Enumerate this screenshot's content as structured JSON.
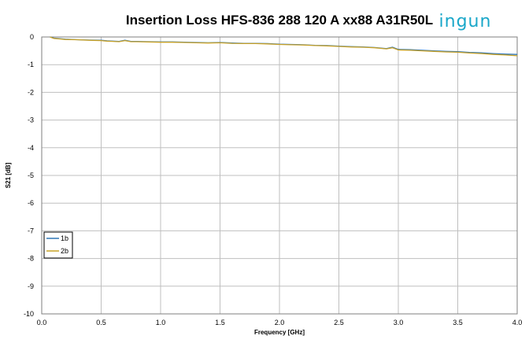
{
  "logo": {
    "text": "ingun",
    "color": "#1aa7c9"
  },
  "chart_data": {
    "type": "line",
    "title": "Insertion Loss HFS-836 288 120 A xx88 A31R50L",
    "xlabel": "Frequency [GHz]",
    "ylabel": "S21 [dB]",
    "xlim": [
      0.0,
      4.0
    ],
    "ylim": [
      -10,
      0
    ],
    "xticks": [
      "0.0",
      "0.5",
      "1.0",
      "1.5",
      "2.0",
      "2.5",
      "3.0",
      "3.5",
      "4.0"
    ],
    "yticks": [
      "0",
      "-1",
      "-2",
      "-3",
      "-4",
      "-5",
      "-6",
      "-7",
      "-8",
      "-9",
      "-10"
    ],
    "grid": true,
    "legend_position": "bottom-left",
    "series": [
      {
        "name": "1b",
        "color": "#2e75b6",
        "x": [
          0.07,
          0.1,
          0.15,
          0.2,
          0.3,
          0.4,
          0.5,
          0.55,
          0.6,
          0.65,
          0.7,
          0.75,
          0.8,
          0.9,
          1.0,
          1.1,
          1.2,
          1.3,
          1.4,
          1.5,
          1.6,
          1.7,
          1.8,
          1.9,
          2.0,
          2.1,
          2.2,
          2.3,
          2.4,
          2.5,
          2.6,
          2.7,
          2.8,
          2.9,
          2.95,
          3.0,
          3.1,
          3.2,
          3.3,
          3.4,
          3.5,
          3.6,
          3.7,
          3.8,
          3.9,
          4.0
        ],
        "y": [
          0.0,
          -0.04,
          -0.06,
          -0.08,
          -0.1,
          -0.11,
          -0.12,
          -0.14,
          -0.15,
          -0.16,
          -0.12,
          -0.16,
          -0.16,
          -0.17,
          -0.18,
          -0.18,
          -0.19,
          -0.2,
          -0.21,
          -0.2,
          -0.22,
          -0.23,
          -0.23,
          -0.24,
          -0.26,
          -0.27,
          -0.28,
          -0.3,
          -0.31,
          -0.33,
          -0.35,
          -0.36,
          -0.38,
          -0.42,
          -0.37,
          -0.45,
          -0.46,
          -0.48,
          -0.5,
          -0.52,
          -0.53,
          -0.56,
          -0.57,
          -0.6,
          -0.62,
          -0.63
        ]
      },
      {
        "name": "2b",
        "color": "#c9a227",
        "x": [
          0.07,
          0.1,
          0.15,
          0.2,
          0.3,
          0.4,
          0.5,
          0.55,
          0.6,
          0.65,
          0.7,
          0.75,
          0.8,
          0.9,
          1.0,
          1.1,
          1.2,
          1.3,
          1.4,
          1.5,
          1.6,
          1.7,
          1.8,
          1.9,
          2.0,
          2.1,
          2.2,
          2.3,
          2.4,
          2.5,
          2.6,
          2.7,
          2.8,
          2.9,
          2.95,
          3.0,
          3.1,
          3.2,
          3.3,
          3.4,
          3.5,
          3.6,
          3.7,
          3.8,
          3.9,
          4.0
        ],
        "y": [
          0.0,
          -0.05,
          -0.07,
          -0.09,
          -0.1,
          -0.12,
          -0.13,
          -0.15,
          -0.16,
          -0.17,
          -0.13,
          -0.17,
          -0.17,
          -0.18,
          -0.19,
          -0.19,
          -0.2,
          -0.21,
          -0.22,
          -0.21,
          -0.23,
          -0.24,
          -0.24,
          -0.25,
          -0.27,
          -0.28,
          -0.29,
          -0.31,
          -0.32,
          -0.34,
          -0.36,
          -0.37,
          -0.39,
          -0.43,
          -0.39,
          -0.47,
          -0.48,
          -0.5,
          -0.52,
          -0.54,
          -0.55,
          -0.58,
          -0.6,
          -0.63,
          -0.65,
          -0.68
        ]
      }
    ]
  }
}
